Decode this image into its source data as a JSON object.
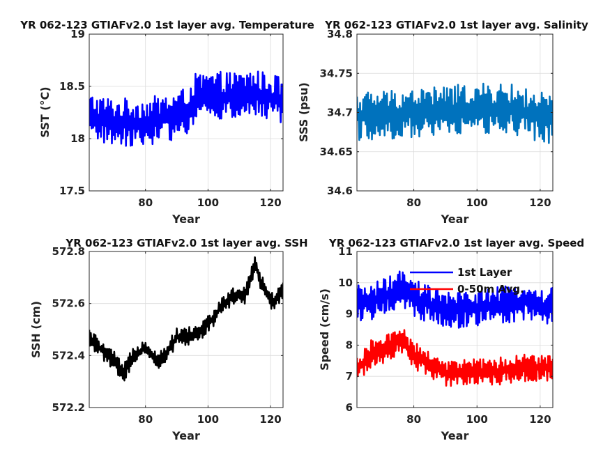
{
  "chart_data": [
    {
      "id": "sst",
      "type": "line",
      "title": "YR 062-123 GTIAFv2.0 1st layer avg. Temperature",
      "xlabel": "Year",
      "ylabel": "SST (°C)",
      "xlim": [
        62,
        124
      ],
      "ylim": [
        17.5,
        19
      ],
      "xticks": [
        80,
        100,
        120
      ],
      "yticks": [
        17.5,
        18,
        18.5,
        19
      ],
      "yticklabels": [
        "17.5",
        "18",
        "18.5",
        "19"
      ],
      "grid": true,
      "series": [
        {
          "color": "#0000ff",
          "keypoints": [
            [
              62,
              18.2
            ],
            [
              70,
              18.15
            ],
            [
              80,
              18.15
            ],
            [
              88,
              18.2
            ],
            [
              93,
              18.25
            ],
            [
              96,
              18.38
            ],
            [
              100,
              18.4
            ],
            [
              110,
              18.4
            ],
            [
              114,
              18.43
            ],
            [
              118,
              18.4
            ],
            [
              124,
              18.35
            ]
          ],
          "amplitude": [
            0.24,
            0.22
          ],
          "period": 0.5
        }
      ]
    },
    {
      "id": "sss",
      "type": "line",
      "title": "YR 062-123 GTIAFv2.0 1st layer avg. Salinity",
      "xlabel": "Year",
      "ylabel": "SSS (psu)",
      "xlim": [
        62,
        124
      ],
      "ylim": [
        34.6,
        34.8
      ],
      "xticks": [
        80,
        100,
        120
      ],
      "yticks": [
        34.6,
        34.65,
        34.7,
        34.75,
        34.8
      ],
      "yticklabels": [
        "34.6",
        "34.65",
        "34.7",
        "34.75",
        "34.8"
      ],
      "grid": true,
      "series": [
        {
          "color": "#0072bd",
          "keypoints": [
            [
              62,
              34.695
            ],
            [
              80,
              34.7
            ],
            [
              100,
              34.705
            ],
            [
              110,
              34.705
            ],
            [
              124,
              34.69
            ]
          ],
          "amplitude": [
            0.032,
            0.032
          ],
          "period": 0.5
        }
      ]
    },
    {
      "id": "ssh",
      "type": "line",
      "title": "YR 062-123 GTIAFv2.0 1st layer avg. SSH",
      "xlabel": "Year",
      "ylabel": "SSH (cm)",
      "xlim": [
        62,
        124
      ],
      "ylim": [
        572.2,
        572.8
      ],
      "xticks": [
        80,
        100,
        120
      ],
      "yticks": [
        572.2,
        572.4,
        572.6,
        572.8
      ],
      "yticklabels": [
        "572.2",
        "572.4",
        "572.6",
        "572.8"
      ],
      "grid": true,
      "series": [
        {
          "color": "#000000",
          "keypoints": [
            [
              62,
              572.47
            ],
            [
              66,
              572.42
            ],
            [
              70,
              572.38
            ],
            [
              73,
              572.33
            ],
            [
              76,
              572.4
            ],
            [
              80,
              572.43
            ],
            [
              84,
              572.38
            ],
            [
              86,
              572.4
            ],
            [
              90,
              572.47
            ],
            [
              96,
              572.48
            ],
            [
              100,
              572.52
            ],
            [
              104,
              572.58
            ],
            [
              108,
              572.63
            ],
            [
              112,
              572.63
            ],
            [
              115,
              572.75
            ],
            [
              118,
              572.65
            ],
            [
              121,
              572.6
            ],
            [
              124,
              572.65
            ]
          ],
          "amplitude": [
            0.035,
            0.035
          ],
          "period": 0.5
        }
      ]
    },
    {
      "id": "speed",
      "type": "line",
      "title": "YR 062-123 GTIAFv2.0 1st layer avg. Speed",
      "xlabel": "Year",
      "ylabel": "Speed (cm/s)",
      "xlim": [
        62,
        124
      ],
      "ylim": [
        6,
        11
      ],
      "xticks": [
        80,
        100,
        120
      ],
      "yticks": [
        6,
        7,
        8,
        9,
        10,
        11
      ],
      "yticklabels": [
        "6",
        "7",
        "8",
        "9",
        "10",
        "11"
      ],
      "grid": true,
      "legend": "top-right",
      "series": [
        {
          "name": "1st Layer",
          "color": "#0000ff",
          "keypoints": [
            [
              62,
              9.3
            ],
            [
              70,
              9.5
            ],
            [
              76,
              9.8
            ],
            [
              80,
              9.5
            ],
            [
              90,
              9.1
            ],
            [
              100,
              9.2
            ],
            [
              110,
              9.3
            ],
            [
              115,
              9.4
            ],
            [
              120,
              9.2
            ],
            [
              124,
              9.3
            ]
          ],
          "amplitude": [
            0.6,
            0.6
          ],
          "period": 0.5
        },
        {
          "name": "0-50m Avg.",
          "color": "#ff0000",
          "keypoints": [
            [
              62,
              7.2
            ],
            [
              66,
              7.7
            ],
            [
              72,
              7.9
            ],
            [
              76,
              8.2
            ],
            [
              80,
              7.7
            ],
            [
              90,
              7.1
            ],
            [
              100,
              7.1
            ],
            [
              110,
              7.2
            ],
            [
              120,
              7.3
            ],
            [
              124,
              7.3
            ]
          ],
          "amplitude": [
            0.45,
            0.45
          ],
          "period": 0.5
        }
      ]
    }
  ]
}
